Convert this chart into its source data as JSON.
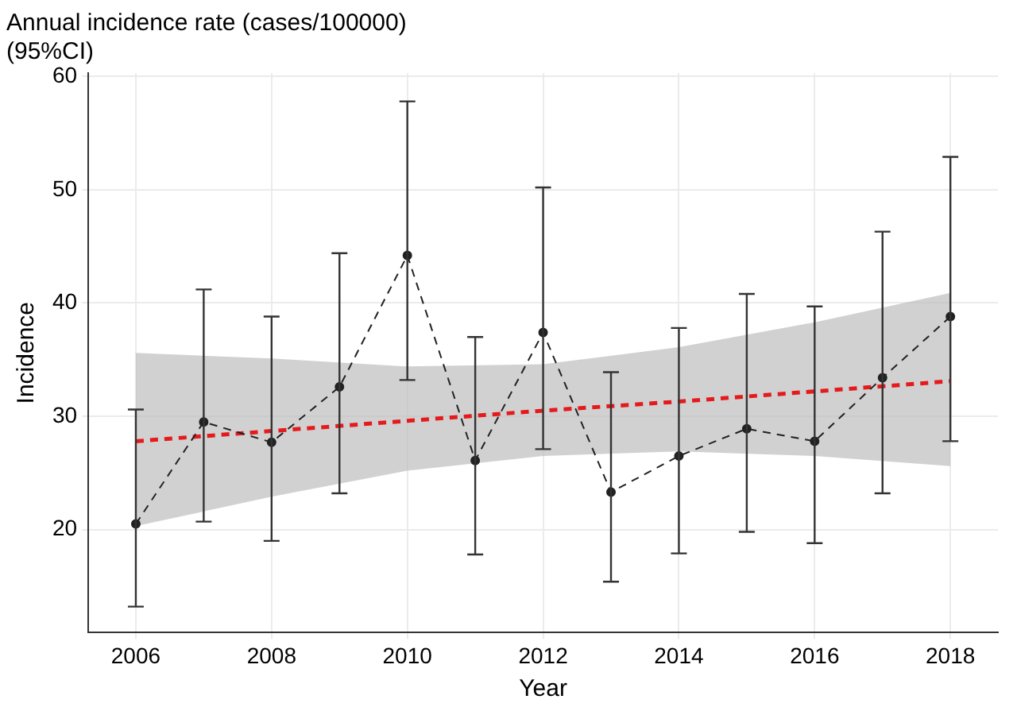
{
  "chart_data": {
    "type": "line",
    "title": "Annual incidence rate (cases/100000)\n(95%CI)",
    "xlabel": "Year",
    "ylabel": "Incidence",
    "x": [
      2006,
      2007,
      2008,
      2009,
      2010,
      2011,
      2012,
      2013,
      2014,
      2015,
      2016,
      2017,
      2018
    ],
    "xlim": [
      2005.3,
      2018.7
    ],
    "xticks": [
      2006,
      2008,
      2010,
      2012,
      2014,
      2016,
      2018
    ],
    "ylim": [
      10.9,
      60.3
    ],
    "yticks": [
      20,
      30,
      40,
      50,
      60
    ],
    "grid": true,
    "legend": false,
    "series": [
      {
        "color": "#222222",
        "line_style": "dashed",
        "marker": "circle",
        "values": [
          20.5,
          29.5,
          27.7,
          32.6,
          44.2,
          26.1,
          37.4,
          23.3,
          26.5,
          28.9,
          27.8,
          33.4,
          38.8
        ],
        "errors": [
          [
            13.2,
            30.6
          ],
          [
            20.7,
            41.2
          ],
          [
            19.0,
            38.8
          ],
          [
            23.2,
            44.4
          ],
          [
            33.2,
            57.8
          ],
          [
            17.8,
            37.0
          ],
          [
            27.1,
            50.2
          ],
          [
            15.4,
            33.9
          ],
          [
            17.9,
            37.8
          ],
          [
            19.8,
            40.8
          ],
          [
            18.8,
            39.7
          ],
          [
            23.2,
            46.3
          ],
          [
            27.8,
            52.9
          ]
        ]
      },
      {
        "color": "#e41a1c",
        "line_style": "dashed",
        "marker": "none",
        "x": [
          2006,
          2008,
          2010,
          2012,
          2014,
          2016,
          2018
        ],
        "values": [
          27.8,
          28.7,
          29.6,
          30.5,
          31.3,
          32.2,
          33.1
        ],
        "lower": [
          20.3,
          22.9,
          25.2,
          26.5,
          26.9,
          26.5,
          25.6
        ],
        "upper": [
          35.6,
          35.1,
          34.4,
          34.6,
          36.1,
          38.3,
          40.9
        ]
      }
    ]
  }
}
